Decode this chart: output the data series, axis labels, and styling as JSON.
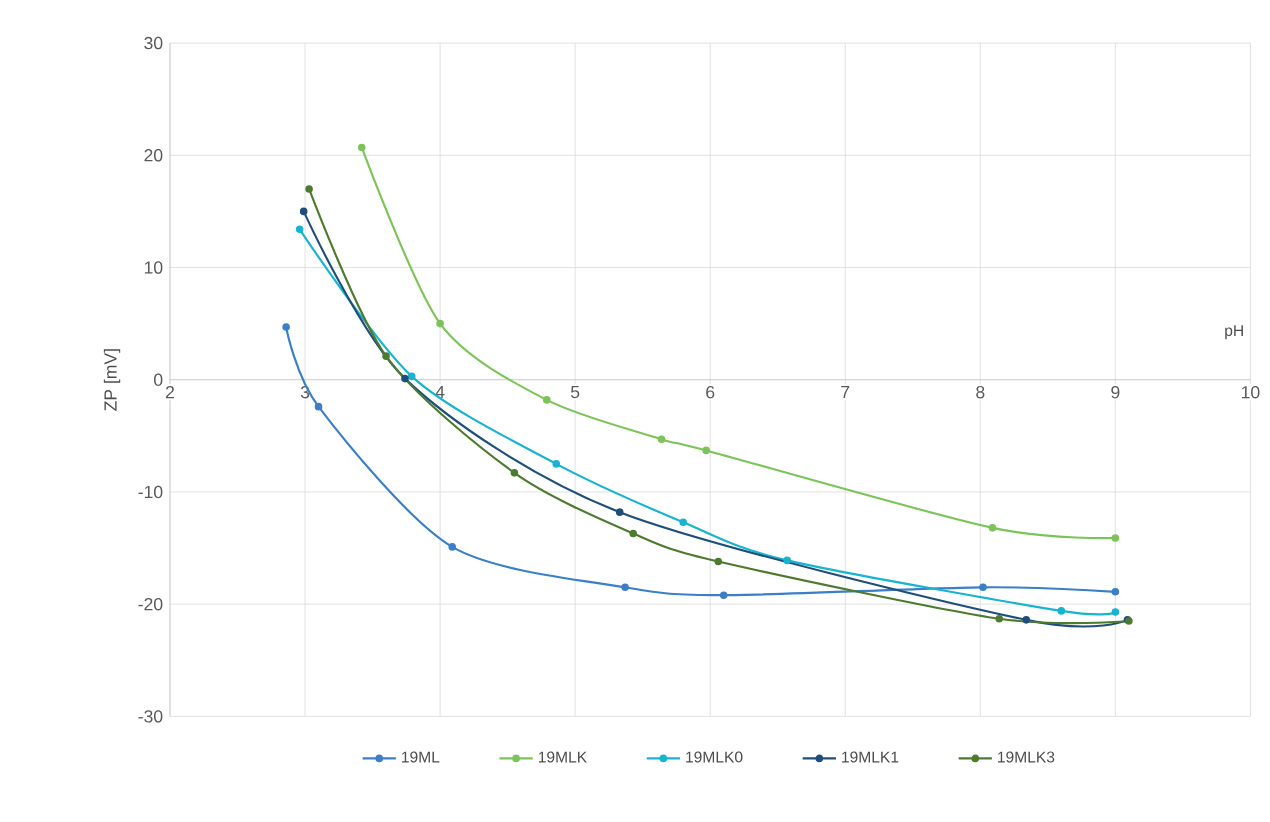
{
  "chart_data": {
    "type": "line",
    "xlabel": "pH",
    "ylabel": "ZP [mV]",
    "xlim": [
      2,
      10
    ],
    "ylim": [
      -30,
      30
    ],
    "xticks": [
      2,
      3,
      4,
      5,
      6,
      7,
      8,
      9,
      10
    ],
    "yticks": [
      -30,
      -20,
      -10,
      0,
      10,
      20,
      30
    ],
    "grid": true,
    "legend": "bottom",
    "marker": "circle",
    "line_style": "solid",
    "series": [
      {
        "name": "19ML",
        "color": "#3a7fc8",
        "x": [
          2.86,
          3.1,
          4.09,
          5.37,
          6.1,
          8.02,
          9.0
        ],
        "values": [
          4.7,
          -2.4,
          -14.9,
          -18.5,
          -19.2,
          -18.5,
          -18.9
        ]
      },
      {
        "name": "19MLK",
        "color": "#7cc359",
        "x": [
          3.42,
          4.0,
          4.79,
          5.64,
          5.97,
          8.09,
          9.0
        ],
        "values": [
          20.7,
          5.0,
          -1.8,
          -5.3,
          -6.3,
          -13.2,
          -14.1
        ]
      },
      {
        "name": "19MLK0",
        "color": "#17b3d0",
        "x": [
          2.96,
          3.79,
          4.86,
          5.8,
          6.57,
          8.6,
          9.0
        ],
        "values": [
          13.4,
          0.3,
          -7.5,
          -12.7,
          -16.1,
          -20.6,
          -20.7
        ]
      },
      {
        "name": "19MLK1",
        "color": "#1f4e79",
        "x": [
          2.99,
          3.74,
          5.33,
          8.34,
          9.09
        ],
        "values": [
          15.0,
          0.1,
          -11.8,
          -21.4,
          -21.4
        ]
      },
      {
        "name": "19MLK3",
        "color": "#4e7a2f",
        "x": [
          3.03,
          3.6,
          4.55,
          5.43,
          6.06,
          8.14,
          9.1
        ],
        "values": [
          17.0,
          2.1,
          -8.3,
          -13.7,
          -16.2,
          -21.3,
          -21.5
        ]
      }
    ]
  }
}
